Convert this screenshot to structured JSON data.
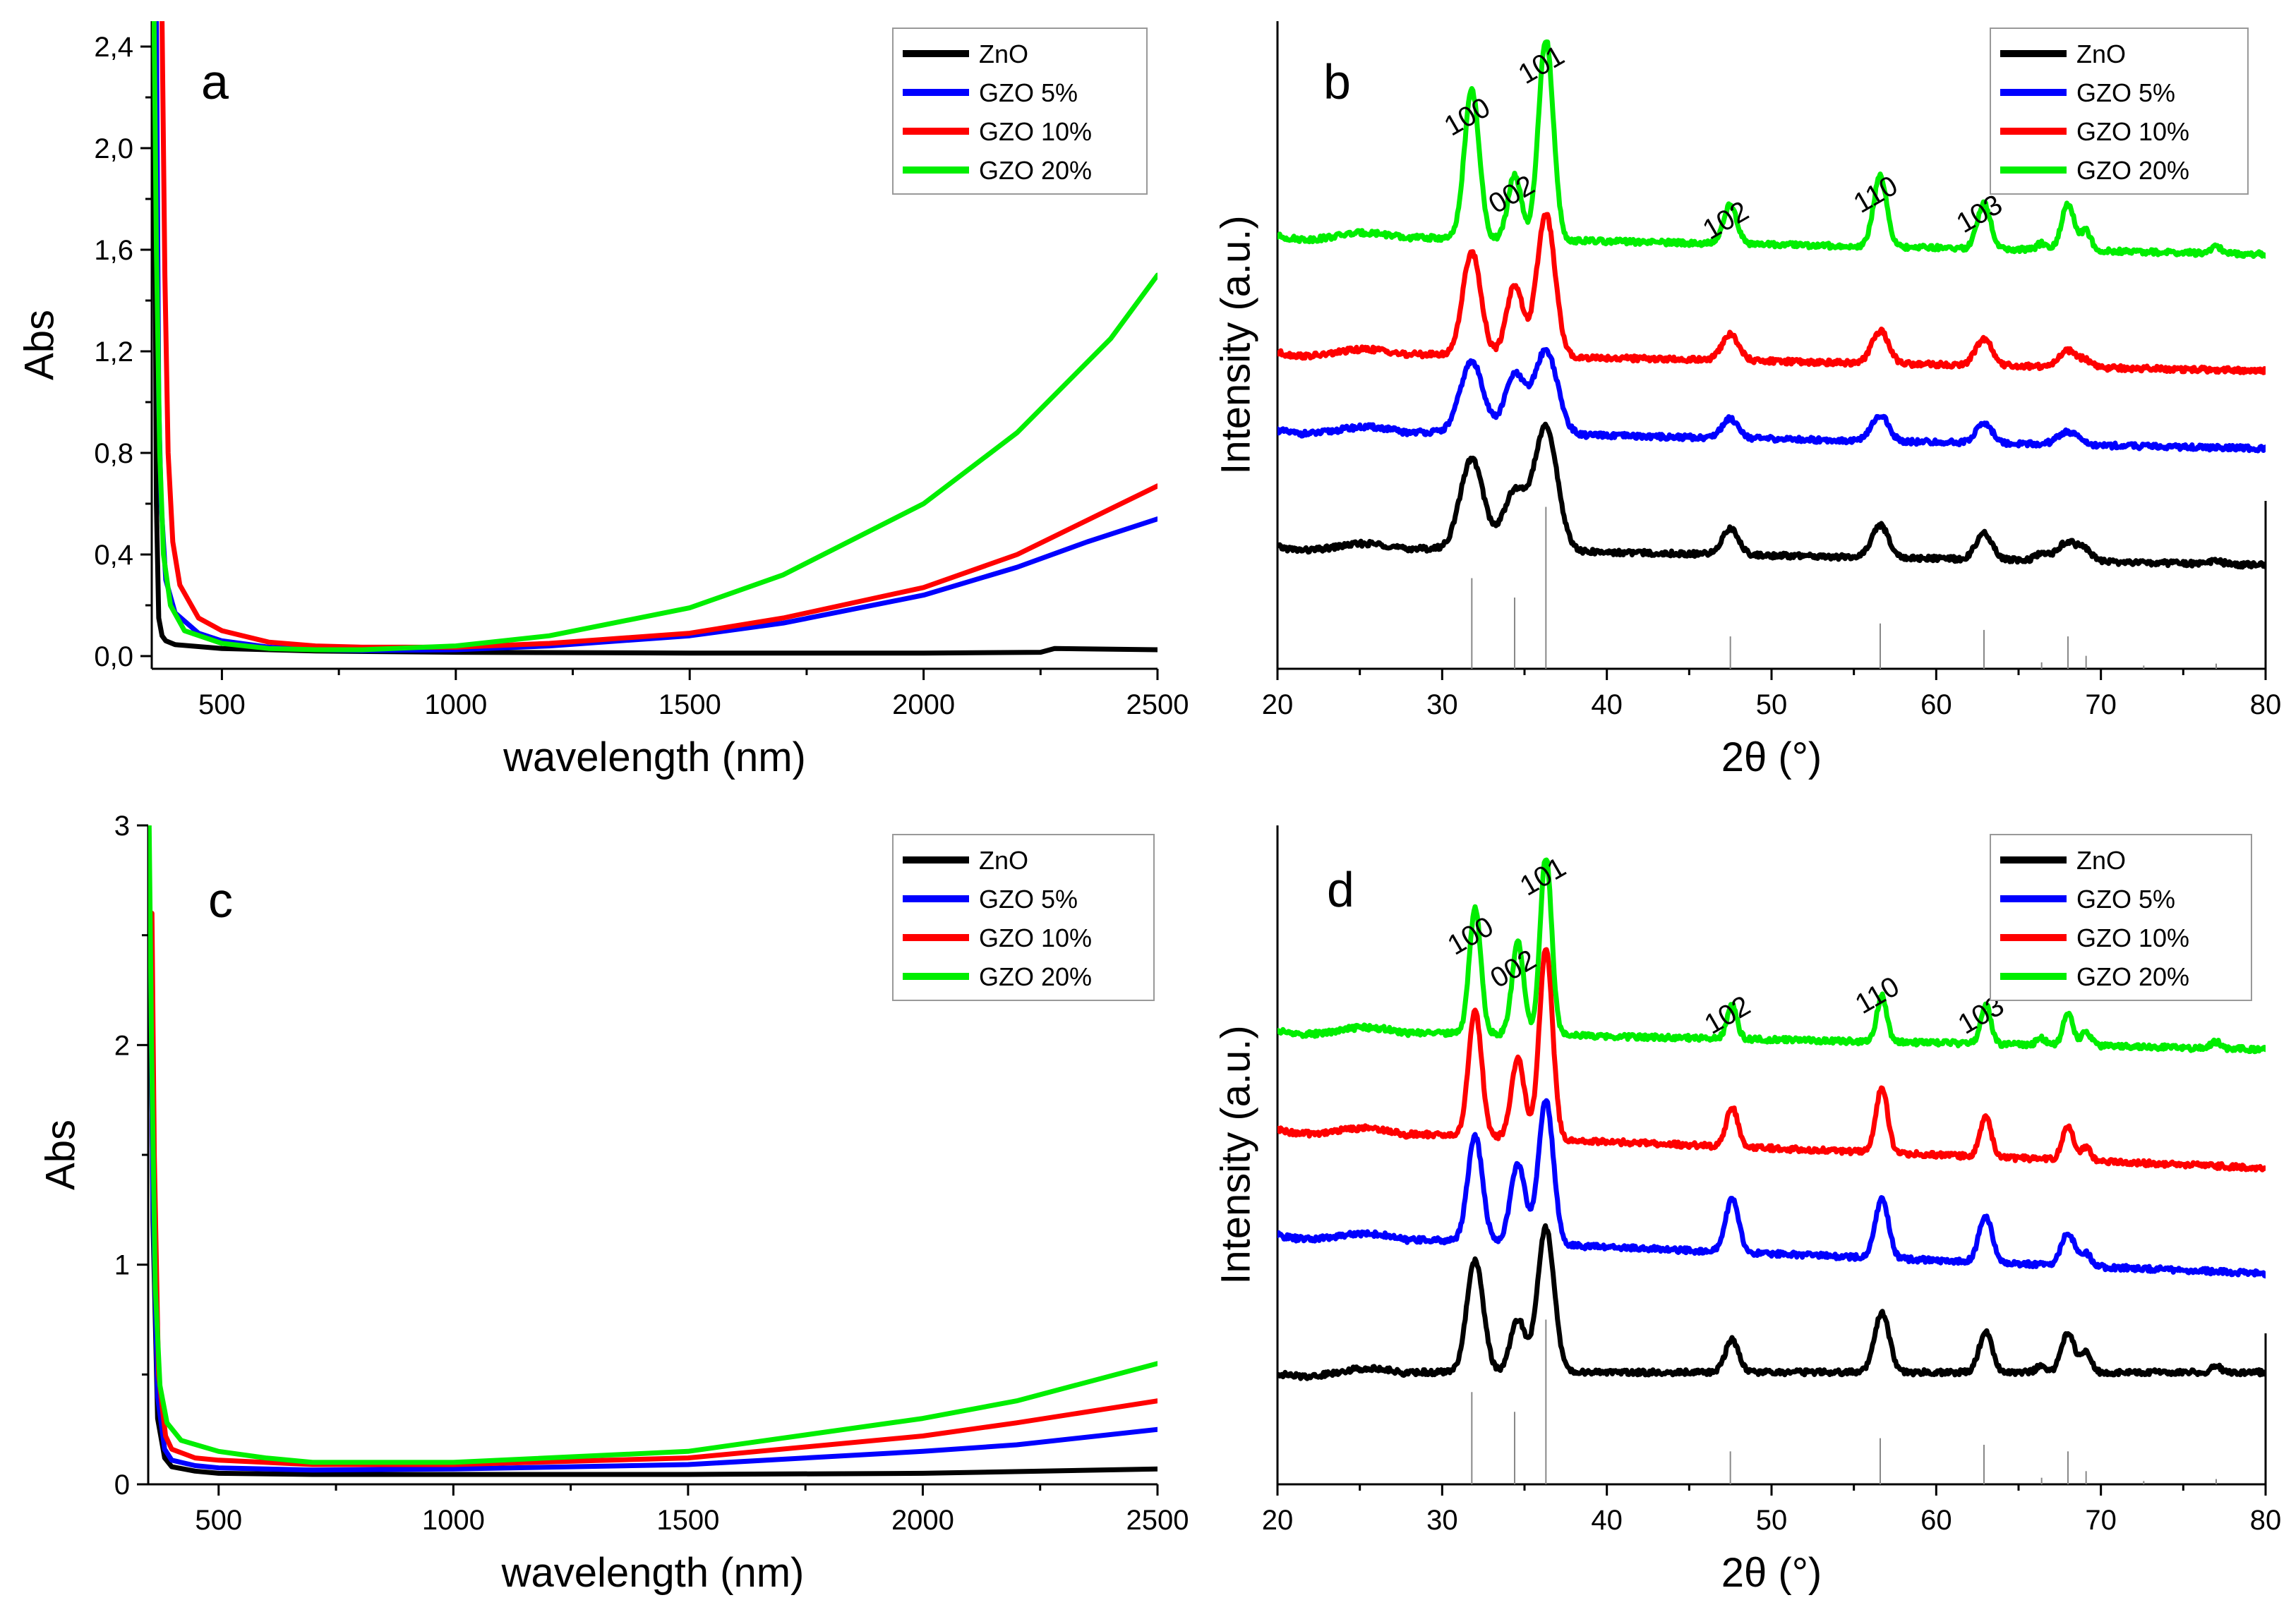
{
  "colors": {
    "ZnO": "#000000",
    "GZO 5%": "#0000ff",
    "GZO 10%": "#ff0000",
    "GZO 20%": "#00ee00"
  },
  "chart_data": [
    {
      "id": "a",
      "type": "line",
      "panel_label": "a",
      "xlabel": "wavelength (nm)",
      "ylabel": "Abs",
      "xlim": [
        350,
        2500
      ],
      "ylim": [
        -0.05,
        2.5
      ],
      "xticks": [
        500,
        1000,
        1500,
        2000,
        2500
      ],
      "xtick_labels": [
        "500",
        "1000",
        "1500",
        "2000",
        "2500"
      ],
      "yticks": [
        0.0,
        0.4,
        0.8,
        1.2,
        1.6,
        2.0,
        2.4
      ],
      "ytick_labels": [
        "0,0",
        "0,4",
        "0,8",
        "1,2",
        "1,6",
        "2,0",
        "2,4"
      ],
      "legend": [
        "ZnO",
        "GZO 5%",
        "GZO 10%",
        "GZO 20%"
      ],
      "series": [
        {
          "name": "ZnO",
          "x": [
            355,
            360,
            365,
            372,
            380,
            400,
            500,
            700,
            1000,
            1500,
            2000,
            2250,
            2280,
            2500
          ],
          "y": [
            2.5,
            0.6,
            0.15,
            0.08,
            0.06,
            0.045,
            0.03,
            0.02,
            0.015,
            0.012,
            0.012,
            0.015,
            0.03,
            0.025
          ]
        },
        {
          "name": "GZO 5%",
          "x": [
            360,
            365,
            370,
            380,
            400,
            450,
            500,
            600,
            700,
            800,
            1000,
            1200,
            1500,
            1700,
            2000,
            2200,
            2350,
            2500
          ],
          "y": [
            2.5,
            1.0,
            0.6,
            0.3,
            0.17,
            0.09,
            0.06,
            0.035,
            0.025,
            0.022,
            0.025,
            0.04,
            0.08,
            0.13,
            0.24,
            0.35,
            0.45,
            0.54
          ]
        },
        {
          "name": "GZO 10%",
          "x": [
            372,
            378,
            385,
            395,
            410,
            450,
            500,
            600,
            700,
            800,
            1000,
            1200,
            1500,
            1700,
            2000,
            2200,
            2400,
            2500
          ],
          "y": [
            2.5,
            1.5,
            0.8,
            0.45,
            0.28,
            0.15,
            0.1,
            0.055,
            0.04,
            0.035,
            0.035,
            0.05,
            0.09,
            0.15,
            0.27,
            0.4,
            0.58,
            0.67
          ]
        },
        {
          "name": "GZO 20%",
          "x": [
            355,
            360,
            367,
            375,
            390,
            420,
            500,
            600,
            700,
            800,
            1000,
            1200,
            1500,
            1700,
            2000,
            2200,
            2400,
            2500
          ],
          "y": [
            2.5,
            1.6,
            0.8,
            0.4,
            0.2,
            0.1,
            0.05,
            0.03,
            0.025,
            0.025,
            0.04,
            0.08,
            0.19,
            0.32,
            0.6,
            0.88,
            1.25,
            1.5
          ]
        }
      ]
    },
    {
      "id": "b",
      "type": "line",
      "panel_label": "b",
      "xlabel": "2θ (°)",
      "ylabel": "Intensity (a.u.)",
      "xlim": [
        20,
        80
      ],
      "ylim": [
        0,
        100
      ],
      "xticks": [
        20,
        30,
        40,
        50,
        60,
        70,
        80
      ],
      "xtick_labels": [
        "20",
        "30",
        "40",
        "50",
        "60",
        "70",
        "80"
      ],
      "legend": [
        "ZnO",
        "GZO 5%",
        "GZO 10%",
        "GZO 20%"
      ],
      "peak_labels": [
        {
          "text": "100",
          "x": 31.8,
          "y": 84
        },
        {
          "text": "002",
          "x": 34.5,
          "y": 72
        },
        {
          "text": "101",
          "x": 36.3,
          "y": 92
        },
        {
          "text": "102",
          "x": 47.5,
          "y": 68
        },
        {
          "text": "110",
          "x": 56.6,
          "y": 72
        },
        {
          "text": "103",
          "x": 62.9,
          "y": 69
        }
      ],
      "reference_lines": [
        {
          "x": 31.8,
          "h": 14
        },
        {
          "x": 34.4,
          "h": 11
        },
        {
          "x": 36.3,
          "h": 25
        },
        {
          "x": 47.5,
          "h": 5
        },
        {
          "x": 56.6,
          "h": 7
        },
        {
          "x": 62.9,
          "h": 6
        },
        {
          "x": 66.4,
          "h": 1
        },
        {
          "x": 68.0,
          "h": 5
        },
        {
          "x": 69.1,
          "h": 2
        },
        {
          "x": 72.6,
          "h": 0.5
        },
        {
          "x": 77.0,
          "h": 0.8
        }
      ],
      "series": [
        {
          "name": "ZnO",
          "baseline_start": 19,
          "baseline_end": 16,
          "peaks": [
            [
              31.8,
              14,
              0.7
            ],
            [
              34.4,
              9,
              0.7
            ],
            [
              36.3,
              19,
              0.7
            ],
            [
              47.5,
              4,
              0.5
            ],
            [
              56.6,
              5,
              0.5
            ],
            [
              62.9,
              4,
              0.5
            ],
            [
              66.4,
              1,
              0.4
            ],
            [
              68.0,
              3,
              0.6
            ],
            [
              69.1,
              1.5,
              0.4
            ],
            [
              77.0,
              0.5,
              0.4
            ]
          ]
        },
        {
          "name": "GZO 5%",
          "baseline_start": 37,
          "baseline_end": 34,
          "peaks": [
            [
              31.8,
              11,
              0.7
            ],
            [
              34.4,
              9,
              0.6
            ],
            [
              36.3,
              13,
              0.7
            ],
            [
              47.5,
              3,
              0.5
            ],
            [
              56.6,
              4,
              0.5
            ],
            [
              62.9,
              3,
              0.5
            ],
            [
              68.0,
              2,
              0.6
            ]
          ]
        },
        {
          "name": "GZO 10%",
          "baseline_start": 49,
          "baseline_end": 46,
          "peaks": [
            [
              31.8,
              16,
              0.55
            ],
            [
              34.4,
              11,
              0.5
            ],
            [
              36.3,
              22,
              0.55
            ],
            [
              47.5,
              4,
              0.5
            ],
            [
              56.6,
              5,
              0.5
            ],
            [
              62.9,
              4,
              0.5
            ],
            [
              68.0,
              2.5,
              0.5
            ],
            [
              69.1,
              1,
              0.4
            ]
          ]
        },
        {
          "name": "GZO 20%",
          "baseline_start": 67,
          "baseline_end": 64,
          "peaks": [
            [
              31.8,
              23,
              0.45
            ],
            [
              34.4,
              10,
              0.4
            ],
            [
              36.3,
              31,
              0.45
            ],
            [
              47.5,
              6,
              0.4
            ],
            [
              56.6,
              11,
              0.4
            ],
            [
              62.9,
              7,
              0.4
            ],
            [
              66.4,
              1,
              0.3
            ],
            [
              68.0,
              7,
              0.4
            ],
            [
              69.1,
              3,
              0.3
            ],
            [
              77.0,
              1,
              0.3
            ]
          ]
        }
      ]
    },
    {
      "id": "c",
      "type": "line",
      "panel_label": "c",
      "xlabel": "wavelength (nm)",
      "ylabel": "Abs",
      "xlim": [
        350,
        2500
      ],
      "ylim": [
        0,
        3
      ],
      "xticks": [
        500,
        1000,
        1500,
        2000,
        2500
      ],
      "xtick_labels": [
        "500",
        "1000",
        "1500",
        "2000",
        "2500"
      ],
      "yticks": [
        0,
        1,
        2,
        3
      ],
      "ytick_labels": [
        "0",
        "1",
        "2",
        "3"
      ],
      "legend": [
        "ZnO",
        "GZO 5%",
        "GZO 10%",
        "GZO 20%"
      ],
      "series": [
        {
          "name": "ZnO",
          "x": [
            355,
            360,
            370,
            385,
            400,
            450,
            500,
            700,
            1000,
            1500,
            2000,
            2500
          ],
          "y": [
            2.6,
            1.2,
            0.3,
            0.12,
            0.08,
            0.06,
            0.05,
            0.045,
            0.045,
            0.045,
            0.05,
            0.07
          ]
        },
        {
          "name": "GZO 5%",
          "x": [
            355,
            360,
            370,
            385,
            400,
            450,
            500,
            700,
            1000,
            1500,
            2000,
            2200,
            2500
          ],
          "y": [
            2.4,
            1.3,
            0.4,
            0.16,
            0.11,
            0.085,
            0.075,
            0.065,
            0.07,
            0.09,
            0.15,
            0.18,
            0.25
          ]
        },
        {
          "name": "GZO 10%",
          "x": [
            358,
            363,
            372,
            387,
            400,
            450,
            500,
            700,
            1000,
            1500,
            2000,
            2200,
            2500
          ],
          "y": [
            2.6,
            1.5,
            0.5,
            0.22,
            0.16,
            0.12,
            0.11,
            0.09,
            0.09,
            0.12,
            0.22,
            0.28,
            0.38
          ]
        },
        {
          "name": "GZO 20%",
          "x": [
            352,
            357,
            365,
            375,
            390,
            420,
            500,
            600,
            700,
            1000,
            1500,
            2000,
            2200,
            2500
          ],
          "y": [
            3.0,
            2.0,
            0.9,
            0.45,
            0.28,
            0.2,
            0.15,
            0.12,
            0.1,
            0.1,
            0.15,
            0.3,
            0.38,
            0.55
          ]
        }
      ]
    },
    {
      "id": "d",
      "type": "line",
      "panel_label": "d",
      "xlabel": "2θ (°)",
      "ylabel": "Intensity (a.u.)",
      "xlim": [
        20,
        80
      ],
      "ylim": [
        0,
        100
      ],
      "xticks": [
        20,
        30,
        40,
        50,
        60,
        70,
        80
      ],
      "xtick_labels": [
        "20",
        "30",
        "40",
        "50",
        "60",
        "70",
        "80"
      ],
      "legend": [
        "ZnO",
        "GZO 5%",
        "GZO 10%",
        "GZO 20%"
      ],
      "peak_labels": [
        {
          "text": "100",
          "x": 32.0,
          "y": 82
        },
        {
          "text": "002",
          "x": 34.6,
          "y": 77
        },
        {
          "text": "101",
          "x": 36.4,
          "y": 91
        },
        {
          "text": "102",
          "x": 47.6,
          "y": 70
        },
        {
          "text": "110",
          "x": 56.7,
          "y": 73
        },
        {
          "text": "103",
          "x": 63.0,
          "y": 70
        }
      ],
      "reference_lines": [
        {
          "x": 31.8,
          "h": 14
        },
        {
          "x": 34.4,
          "h": 11
        },
        {
          "x": 36.3,
          "h": 25
        },
        {
          "x": 47.5,
          "h": 5
        },
        {
          "x": 56.6,
          "h": 7
        },
        {
          "x": 62.9,
          "h": 6
        },
        {
          "x": 66.4,
          "h": 1
        },
        {
          "x": 68.0,
          "h": 5
        },
        {
          "x": 69.1,
          "h": 2
        },
        {
          "x": 72.6,
          "h": 0.5
        },
        {
          "x": 77.0,
          "h": 0.8
        }
      ],
      "series": [
        {
          "name": "ZnO",
          "baseline_start": 17,
          "baseline_end": 17,
          "peaks": [
            [
              32.0,
              17,
              0.5
            ],
            [
              34.6,
              8,
              0.45
            ],
            [
              36.3,
              22,
              0.5
            ],
            [
              47.6,
              5,
              0.4
            ],
            [
              56.7,
              9,
              0.45
            ],
            [
              63.0,
              6,
              0.4
            ],
            [
              66.4,
              1,
              0.3
            ],
            [
              68.0,
              6,
              0.4
            ],
            [
              69.1,
              3,
              0.3
            ],
            [
              77.0,
              1,
              0.3
            ]
          ]
        },
        {
          "name": "GZO 5%",
          "baseline_start": 38,
          "baseline_end": 32,
          "peaks": [
            [
              32.0,
              16,
              0.45
            ],
            [
              34.6,
              12,
              0.45
            ],
            [
              36.3,
              22,
              0.45
            ],
            [
              47.6,
              8,
              0.4
            ],
            [
              56.7,
              9,
              0.4
            ],
            [
              63.0,
              7,
              0.4
            ],
            [
              68.0,
              5,
              0.4
            ],
            [
              69.1,
              2,
              0.3
            ]
          ]
        },
        {
          "name": "GZO 10%",
          "baseline_start": 54,
          "baseline_end": 48,
          "peaks": [
            [
              32.0,
              19,
              0.4
            ],
            [
              34.6,
              12,
              0.4
            ],
            [
              36.3,
              29,
              0.4
            ],
            [
              47.6,
              6,
              0.35
            ],
            [
              56.7,
              10,
              0.35
            ],
            [
              63.0,
              6,
              0.35
            ],
            [
              68.0,
              5,
              0.35
            ],
            [
              69.1,
              2,
              0.3
            ]
          ]
        },
        {
          "name": "GZO 20%",
          "baseline_start": 69,
          "baseline_end": 66,
          "peaks": [
            [
              32.0,
              19,
              0.35
            ],
            [
              34.6,
              14,
              0.35
            ],
            [
              36.3,
              27,
              0.35
            ],
            [
              47.6,
              5,
              0.3
            ],
            [
              56.7,
              7,
              0.3
            ],
            [
              63.0,
              6,
              0.3
            ],
            [
              66.4,
              1,
              0.3
            ],
            [
              68.0,
              5,
              0.3
            ],
            [
              69.1,
              2,
              0.3
            ],
            [
              77.0,
              1,
              0.3
            ]
          ]
        }
      ]
    }
  ]
}
